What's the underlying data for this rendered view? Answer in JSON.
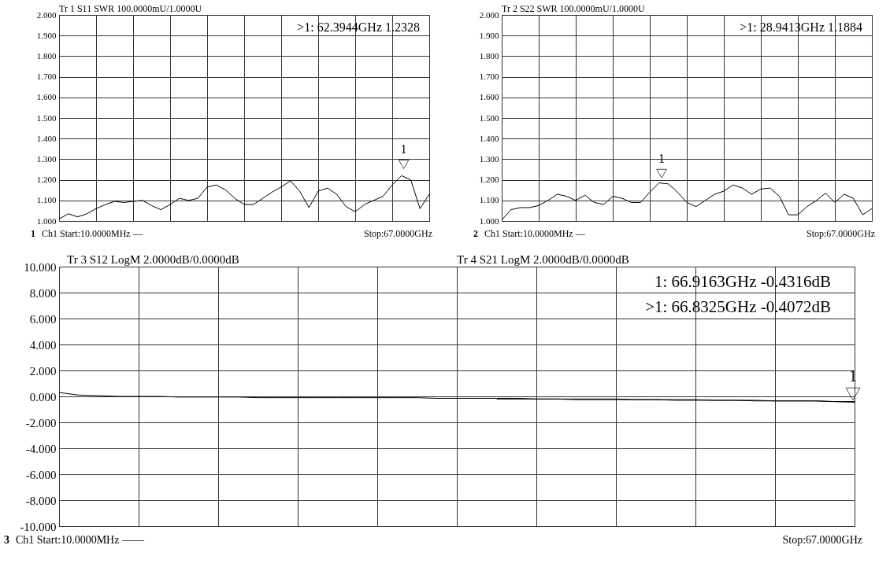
{
  "chart_data": [
    {
      "type": "line",
      "title": "Tr 1  S11 SWR 100.0000mU/1.0000U",
      "ylim": [
        1,
        2
      ],
      "categories": [
        null,
        null,
        null,
        null,
        null,
        null,
        null,
        null,
        null,
        null,
        null,
        null,
        null,
        null,
        null,
        null,
        null,
        null,
        null,
        null,
        null,
        null,
        null,
        null,
        null,
        null,
        null,
        null,
        null,
        null,
        null,
        null,
        null,
        null,
        null,
        null,
        null,
        null,
        null,
        null,
        null
      ],
      "yticks": [
        {
          "value": 1,
          "label": "1.000"
        },
        {
          "value": 1.1,
          "label": "1.100"
        },
        {
          "value": 1.2,
          "label": "1.200"
        },
        {
          "value": 1.3,
          "label": "1.300"
        },
        {
          "value": 1.4,
          "label": "1.400"
        },
        {
          "value": 1.5,
          "label": "1.500"
        },
        {
          "value": 1.6,
          "label": "1.600"
        },
        {
          "value": 1.7,
          "label": "1.700"
        },
        {
          "value": 1.8,
          "label": "1.800"
        },
        {
          "value": 1.9,
          "label": "1.900"
        },
        {
          "value": 2,
          "label": "2.000"
        }
      ],
      "grid": true,
      "tick_labels": "y",
      "series": [
        {
          "color": "#000000",
          "values": [
            1.01,
            1.035,
            1.02,
            1.035,
            1.06,
            1.08,
            1.095,
            1.09,
            1.095,
            1.1,
            1.075,
            1.055,
            1.08,
            1.11,
            1.1,
            1.11,
            1.165,
            1.175,
            1.15,
            1.11,
            1.08,
            1.08,
            1.11,
            1.14,
            1.165,
            1.195,
            1.145,
            1.065,
            1.145,
            1.16,
            1.13,
            1.07,
            1.045,
            1.08,
            1.1,
            1.12,
            1.175,
            1.22,
            1.2,
            1.06,
            1.13
          ]
        }
      ],
      "annotations": [
        ">1:   62.3944GHz 1.2328",
        "1",
        "Ch1  Start:10.0000MHz —",
        "Stop:67.0000GHz",
        "1"
      ]
    },
    {
      "type": "line",
      "title": "Tr 2  S22 SWR 100.0000mU/1.0000U",
      "ylim": [
        1,
        2
      ],
      "categories": [
        null,
        null,
        null,
        null,
        null,
        null,
        null,
        null,
        null,
        null,
        null,
        null,
        null,
        null,
        null,
        null,
        null,
        null,
        null,
        null,
        null,
        null,
        null,
        null,
        null,
        null,
        null,
        null,
        null,
        null,
        null,
        null,
        null,
        null,
        null,
        null,
        null,
        null,
        null,
        null,
        null
      ],
      "yticks": [
        {
          "value": 1,
          "label": "1.000"
        },
        {
          "value": 1.1,
          "label": "1.100"
        },
        {
          "value": 1.2,
          "label": "1.200"
        },
        {
          "value": 1.3,
          "label": "1.300"
        },
        {
          "value": 1.4,
          "label": "1.400"
        },
        {
          "value": 1.5,
          "label": "1.500"
        },
        {
          "value": 1.6,
          "label": "1.600"
        },
        {
          "value": 1.7,
          "label": "1.700"
        },
        {
          "value": 1.8,
          "label": "1.800"
        },
        {
          "value": 1.9,
          "label": "1.900"
        },
        {
          "value": 2,
          "label": "2.000"
        }
      ],
      "grid": true,
      "tick_labels": "y",
      "series": [
        {
          "color": "#000000",
          "values": [
            1.005,
            1.055,
            1.065,
            1.065,
            1.075,
            1.1,
            1.13,
            1.12,
            1.1,
            1.125,
            1.09,
            1.08,
            1.12,
            1.11,
            1.09,
            1.09,
            1.14,
            1.185,
            1.18,
            1.14,
            1.09,
            1.07,
            1.1,
            1.13,
            1.145,
            1.175,
            1.16,
            1.13,
            1.155,
            1.16,
            1.12,
            1.03,
            1.03,
            1.07,
            1.1,
            1.135,
            1.09,
            1.13,
            1.11,
            1.03,
            1.06
          ]
        }
      ],
      "annotations": [
        ">1:   28.9413GHz 1.1884",
        "2",
        "Ch1  Start:10.0000MHz —",
        "Stop:67.0000GHz",
        "1"
      ]
    },
    {
      "type": "line",
      "title": "Tr 3  S12 LogM 2.0000dB/0.0000dB",
      "ylim": [
        -10,
        10
      ],
      "categories": [
        null,
        null,
        null,
        null,
        null,
        null,
        null,
        null,
        null,
        null,
        null,
        null,
        null,
        null,
        null,
        null,
        null,
        null,
        null,
        null,
        null,
        null,
        null,
        null,
        null,
        null,
        null,
        null,
        null,
        null,
        null,
        null,
        null,
        null,
        null,
        null,
        null,
        null,
        null,
        null,
        null
      ],
      "yticks": [
        {
          "value": -10,
          "label": "-10.000"
        },
        {
          "value": -8,
          "label": "-8.000"
        },
        {
          "value": -6,
          "label": "-6.000"
        },
        {
          "value": -4,
          "label": "-4.000"
        },
        {
          "value": -2,
          "label": "-2.000"
        },
        {
          "value": 0,
          "label": "0.000"
        },
        {
          "value": 2,
          "label": "2.000"
        },
        {
          "value": 4,
          "label": "4.000"
        },
        {
          "value": 6,
          "label": "6.000"
        },
        {
          "value": 8,
          "label": "8.000"
        },
        {
          "value": 10,
          "label": "10.000"
        }
      ],
      "grid": true,
      "tick_labels": "y",
      "series": [
        {
          "color": "#000000",
          "values": [
            0.3,
            0.1,
            0.05,
            0,
            0,
            0,
            -0.05,
            -0.05,
            -0.05,
            -0.05,
            -0.1,
            -0.1,
            -0.1,
            -0.1,
            -0.1,
            -0.1,
            -0.1,
            -0.1,
            -0.1,
            -0.15,
            -0.15,
            -0.15,
            -0.15,
            -0.15,
            -0.2,
            -0.2,
            -0.2,
            -0.2,
            -0.2,
            -0.25,
            -0.25,
            -0.25,
            -0.25,
            -0.3,
            -0.3,
            -0.3,
            -0.35,
            -0.35,
            -0.35,
            -0.4,
            -0.45
          ]
        },
        {
          "color": "#000000",
          "values": [
            null,
            null,
            null,
            null,
            null,
            null,
            null,
            null,
            null,
            null,
            null,
            null,
            null,
            null,
            null,
            null,
            null,
            null,
            null,
            null,
            null,
            null,
            -0.2,
            -0.2,
            -0.2,
            -0.2,
            -0.25,
            -0.25,
            -0.25,
            -0.25,
            -0.25,
            -0.3,
            -0.3,
            -0.3,
            -0.3,
            -0.35,
            -0.35,
            -0.35,
            -0.35,
            -0.4,
            -0.4
          ]
        }
      ],
      "annotations": [
        "Tr 4  S21 LogM 2.0000dB/0.0000dB",
        "1:      66.9163GHz -0.4316dB",
        ">1:      66.8325GHz -0.4072dB",
        "3",
        "Ch1  Start:10.0000MHz ——",
        "Stop:67.0000GHz",
        "1"
      ]
    }
  ]
}
